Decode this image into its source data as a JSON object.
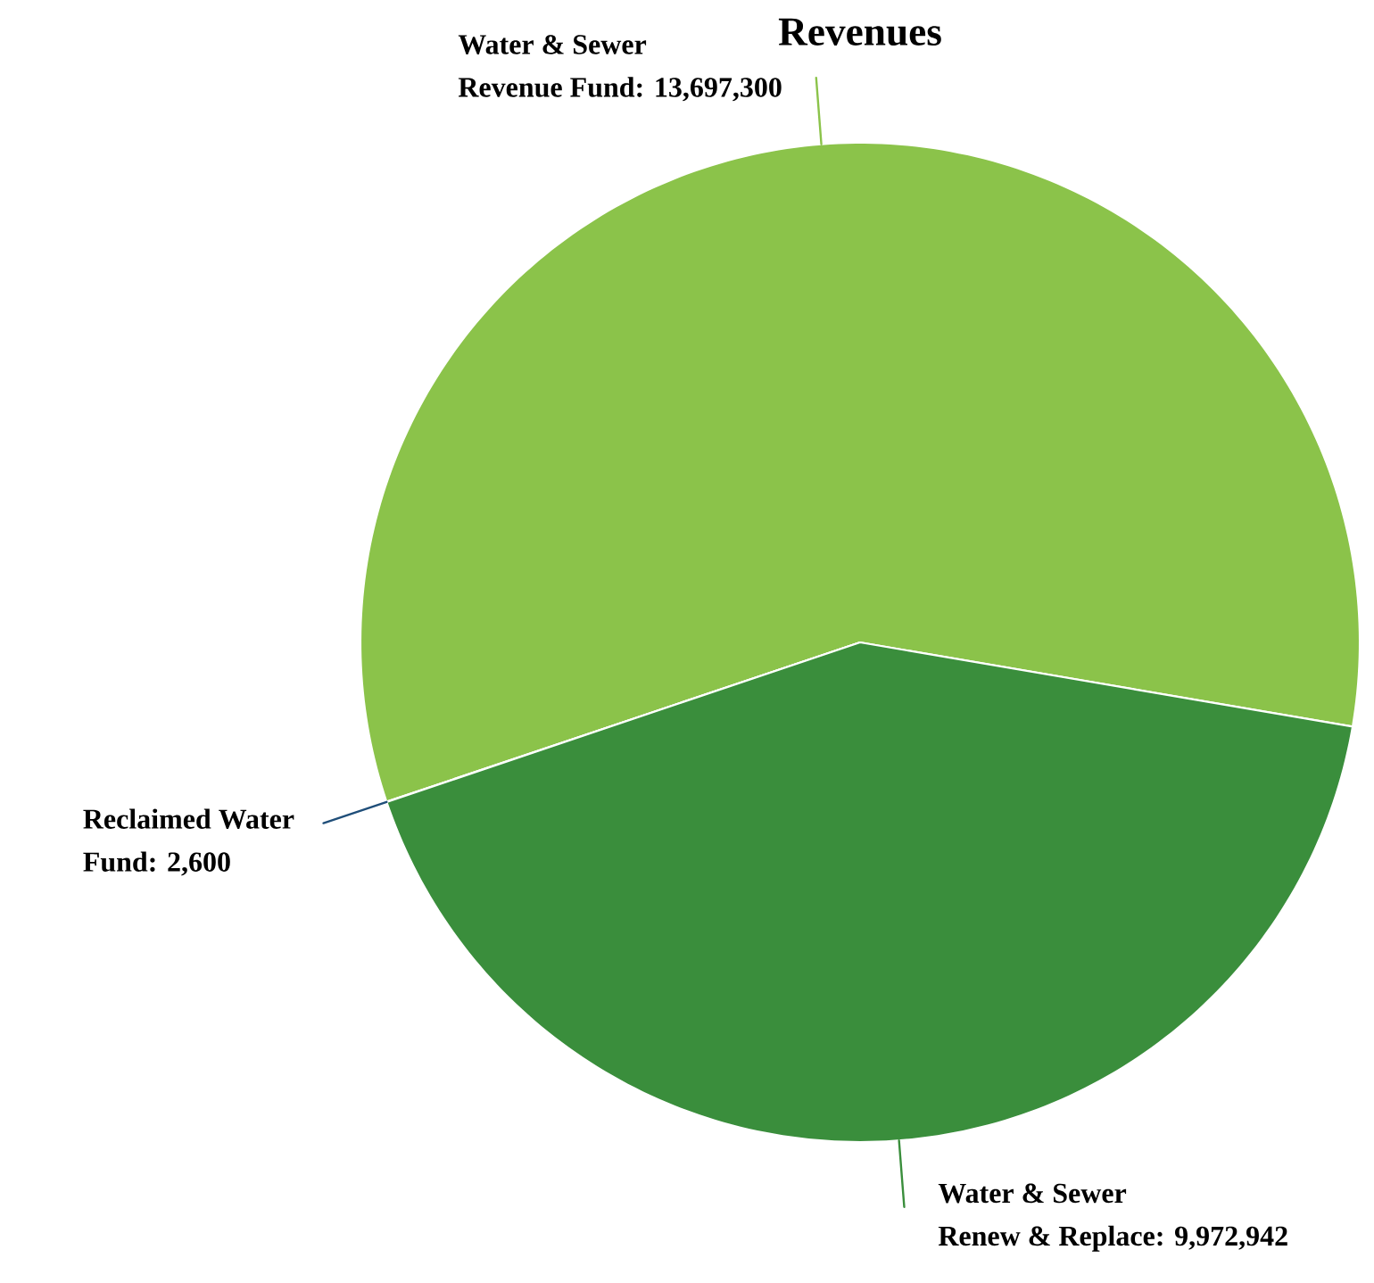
{
  "chart_data": {
    "type": "pie",
    "title": "Revenues",
    "categories": [
      "Water & Sewer Revenue Fund",
      "Reclaimed Water Fund",
      "Water & Sewer Renew & Replace"
    ],
    "values": [
      13697300,
      2600,
      9972942
    ],
    "colors": [
      "#8bc34a",
      "#1f4e79",
      "#3a8e3c"
    ],
    "value_labels": [
      ": 13,697,300",
      ": 2,600",
      ": 9,972,942"
    ]
  }
}
